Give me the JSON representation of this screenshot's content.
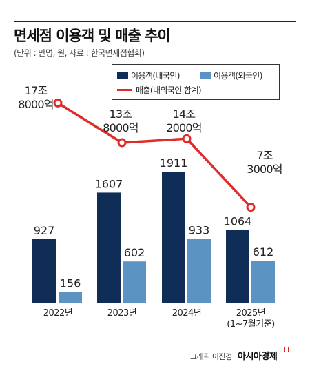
{
  "title": "면세점 이용객 및 매출 추이",
  "subtitle": "(단위 : 만명, 원, 자료 : 한국면세점협회)",
  "credit": "그래픽 이진경",
  "brand": "아시아경제",
  "colors": {
    "domestic": "#0f2d56",
    "foreign": "#5b93c2",
    "sales": "#e02b2b"
  },
  "chart_data": {
    "type": "bar",
    "title": "면세점 이용객 및 매출 추이",
    "categories": [
      "2022년",
      "2023년",
      "2024년",
      "2025년\n(1~7월기준)"
    ],
    "series": [
      {
        "name": "이용객(내국인)",
        "type": "bar",
        "values": [
          927,
          1607,
          1911,
          1064
        ],
        "labels": [
          "927",
          "1607",
          "1911",
          "1064"
        ]
      },
      {
        "name": "이용객(외국인)",
        "type": "bar",
        "values": [
          156,
          602,
          933,
          612
        ],
        "labels": [
          "156",
          "602",
          "933",
          "612"
        ]
      },
      {
        "name": "매출(내외국인 합계)",
        "type": "line",
        "values": [
          17.8,
          13.8,
          14.2,
          7.3
        ],
        "labels": [
          [
            "17조",
            "8000억"
          ],
          [
            "13조",
            "8000억"
          ],
          [
            "14조",
            "2000억"
          ],
          [
            "7조",
            "3000억"
          ]
        ]
      }
    ],
    "legend_position": "top-right"
  }
}
